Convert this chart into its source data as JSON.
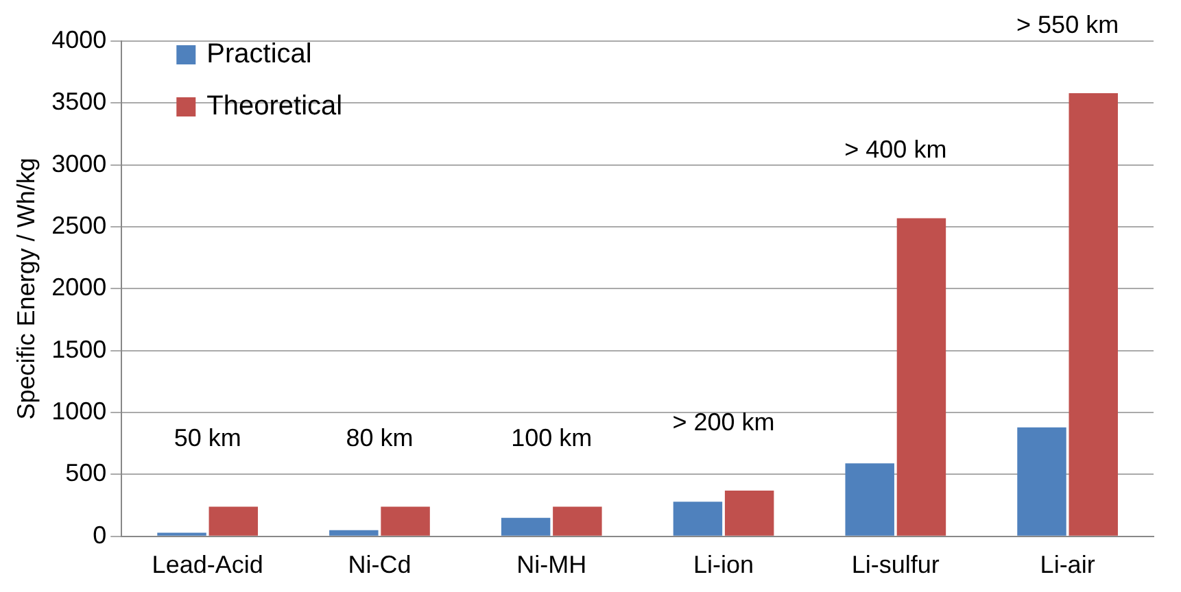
{
  "chart_data": {
    "type": "bar",
    "ylabel": "Specific Energy / Wh/kg",
    "categories": [
      "Lead-Acid",
      "Ni-Cd",
      "Ni-MH",
      "Li-ion",
      "Li-sulfur",
      "Li-air"
    ],
    "series": [
      {
        "name": "Practical",
        "color": "#4f81bd",
        "values": [
          30,
          50,
          150,
          280,
          590,
          880
        ]
      },
      {
        "name": "Theoretical",
        "color": "#c0504d",
        "values": [
          240,
          240,
          240,
          370,
          2570,
          3580
        ]
      }
    ],
    "ylim": [
      0,
      4000
    ],
    "yticks": [
      0,
      500,
      1000,
      1500,
      2000,
      2500,
      3000,
      3500,
      4000
    ],
    "grid": "y",
    "legend": "top left",
    "annotations": [
      "50 km",
      "80 km",
      "100 km",
      "> 200 km",
      "> 400 km",
      "> 550 km"
    ]
  }
}
